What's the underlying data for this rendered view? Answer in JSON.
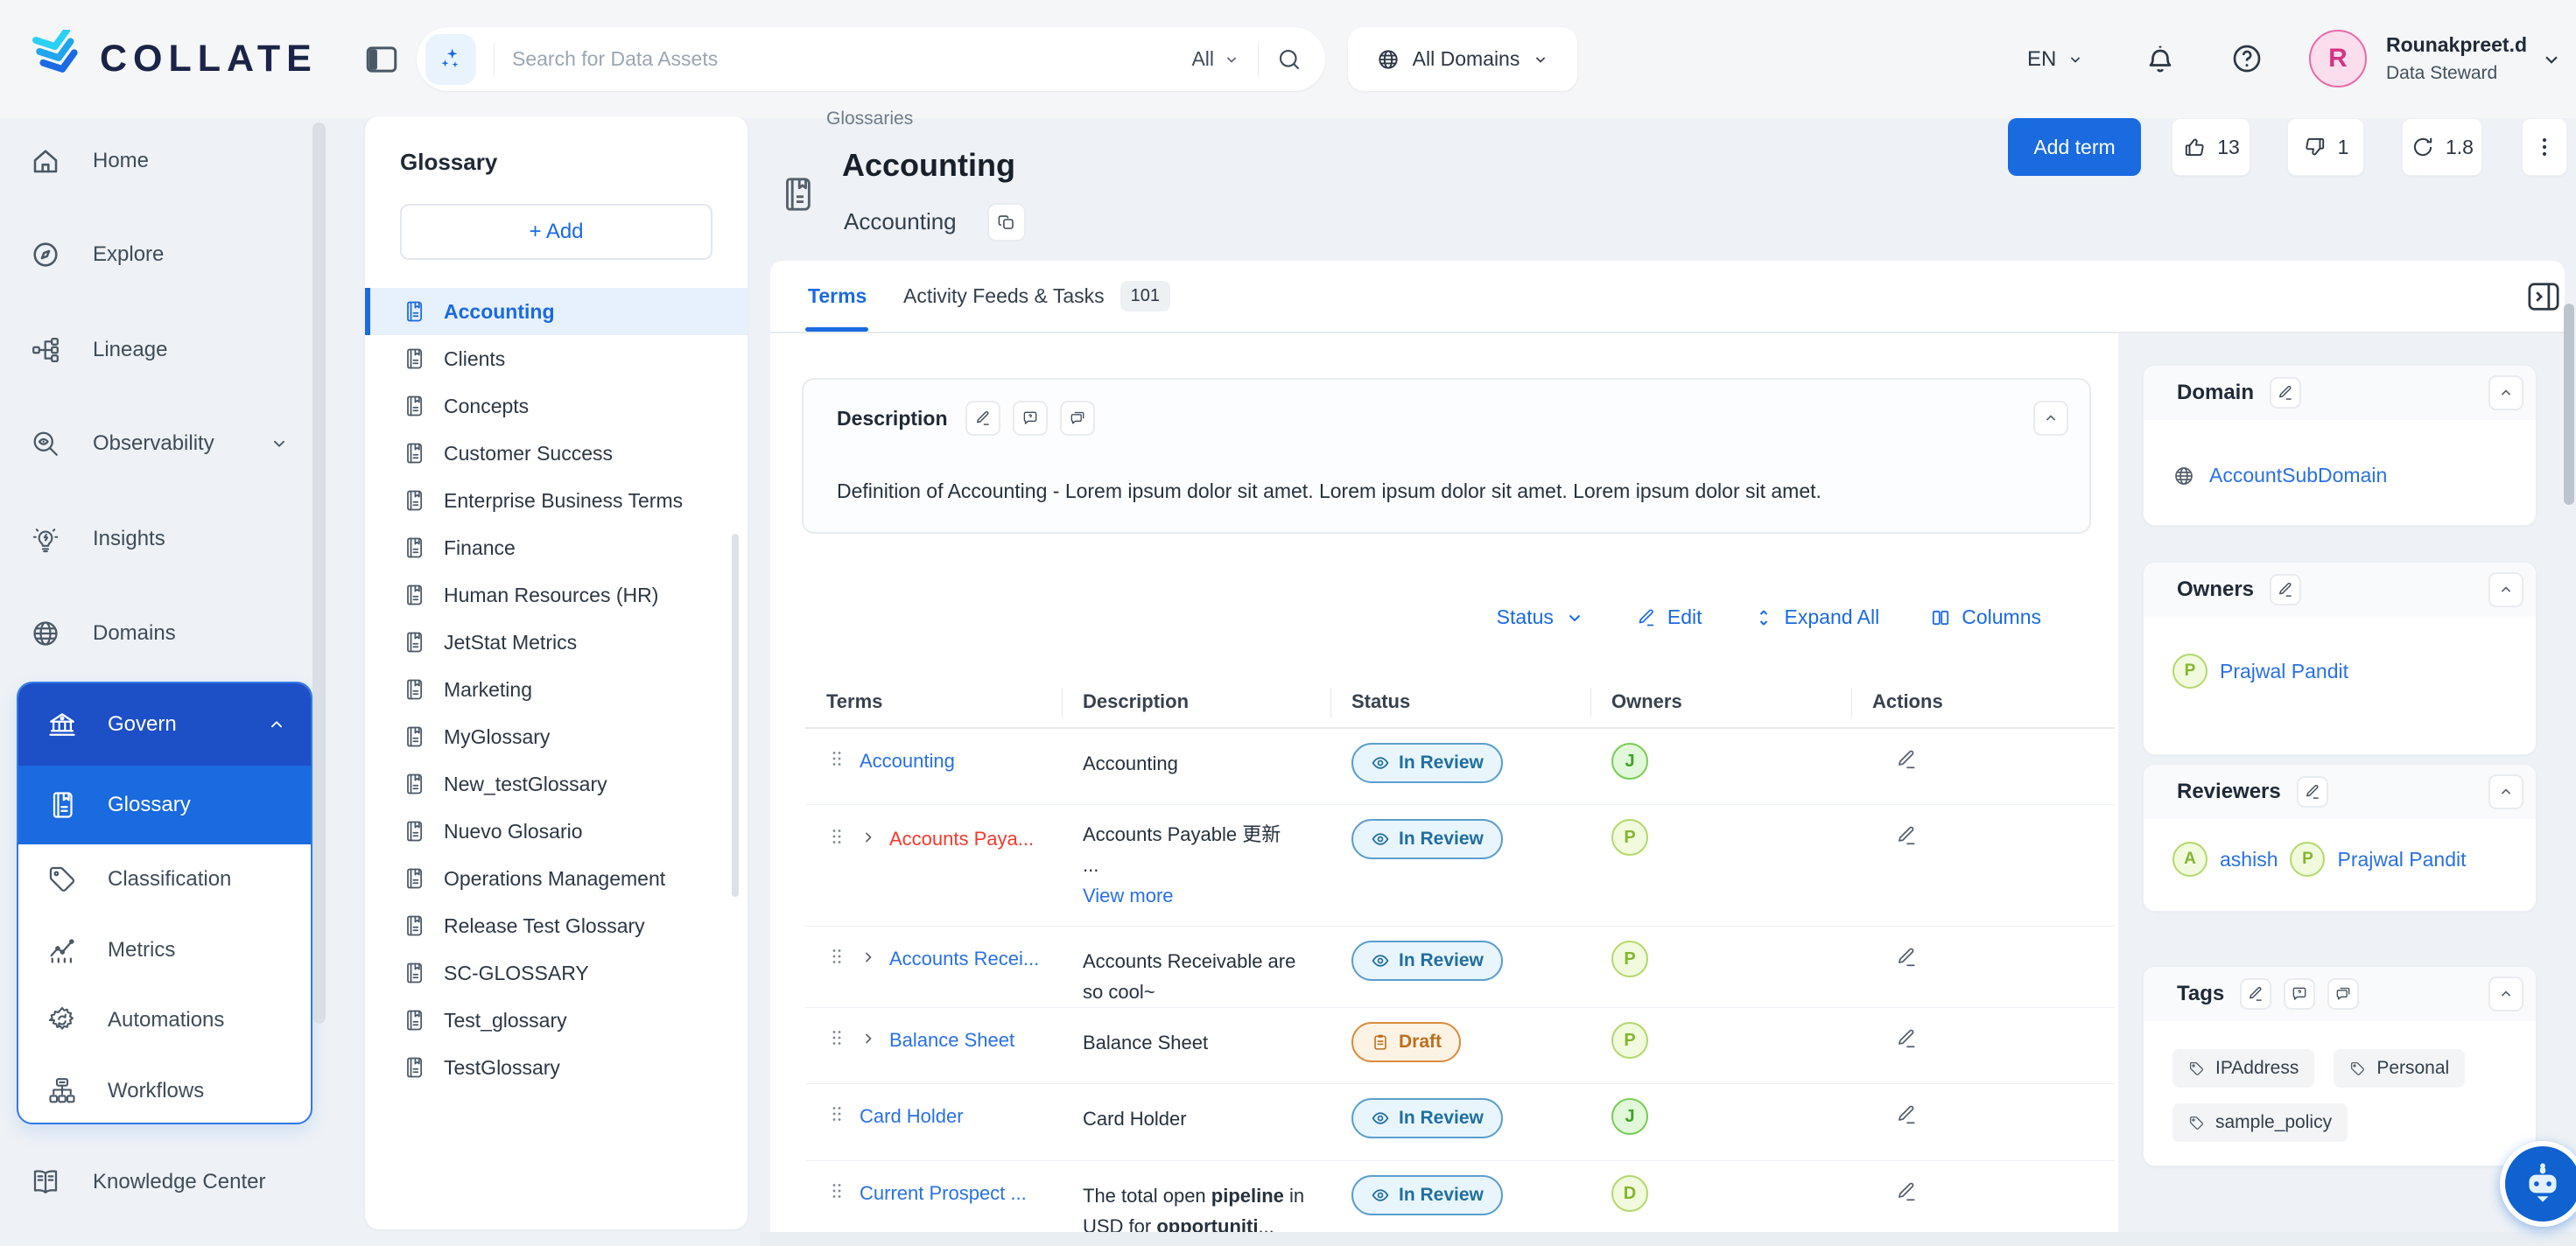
{
  "header": {
    "logo_text": "COLLATE",
    "search": {
      "placeholder": "Search for Data Assets",
      "scope": "All"
    },
    "domains_button": "All Domains",
    "language": "EN",
    "user": {
      "initial": "R",
      "name": "Rounakpreet.d",
      "role": "Data Steward"
    }
  },
  "sidebar": {
    "items": [
      {
        "label": "Home",
        "icon": "home"
      },
      {
        "label": "Explore",
        "icon": "explore"
      },
      {
        "label": "Lineage",
        "icon": "lineage"
      },
      {
        "label": "Observability",
        "icon": "observability",
        "chevron": true
      },
      {
        "label": "Insights",
        "icon": "insights"
      },
      {
        "label": "Domains",
        "icon": "globe"
      }
    ],
    "govern": {
      "label": "Govern",
      "children": [
        {
          "label": "Glossary",
          "icon": "book",
          "active": true
        },
        {
          "label": "Classification",
          "icon": "tag"
        },
        {
          "label": "Metrics",
          "icon": "metrics"
        },
        {
          "label": "Automations",
          "icon": "automations"
        },
        {
          "label": "Workflows",
          "icon": "workflows"
        }
      ]
    },
    "footer_item": {
      "label": "Knowledge Center",
      "icon": "knowledge"
    }
  },
  "glossary_panel": {
    "title": "Glossary",
    "add_label": "+  Add",
    "selected": "Accounting",
    "items": [
      "Accounting",
      "Clients",
      "Concepts",
      "Customer Success",
      "Enterprise Business Terms",
      "Finance",
      "Human Resources (HR)",
      "JetStat Metrics",
      "Marketing",
      "MyGlossary",
      "New_testGlossary",
      "Nuevo Glosario",
      "Operations Management",
      "Release Test Glossary",
      "SC-GLOSSARY",
      "Test_glossary",
      "TestGlossary"
    ]
  },
  "main": {
    "breadcrumb": "Glossaries",
    "title": "Accounting",
    "subtitle": "Accounting",
    "actions": {
      "add_term": "Add term",
      "upvotes": "13",
      "downvotes": "1",
      "version": "1.8"
    },
    "tabs": [
      {
        "label": "Terms",
        "active": true
      },
      {
        "label": "Activity Feeds & Tasks",
        "badge": "101"
      }
    ],
    "description": {
      "label": "Description",
      "text": "Definition of Accounting - Lorem ipsum dolor sit amet. Lorem ipsum dolor sit amet. Lorem ipsum dolor sit amet."
    },
    "toolbar": {
      "status": "Status",
      "edit": "Edit",
      "expand_all": "Expand All",
      "columns": "Columns"
    },
    "table": {
      "headers": [
        "Terms",
        "Description",
        "Status",
        "Owners",
        "Actions"
      ],
      "rows": [
        {
          "term": "Accounting",
          "term_color": "blue",
          "expandable": false,
          "desc": [
            [
              "Accounting",
              false
            ]
          ],
          "status": "In Review",
          "owner": "J",
          "owner_tone": "green"
        },
        {
          "term": "Accounts Paya...",
          "term_color": "red",
          "expandable": true,
          "desc": [
            [
              "Accounts Payable 更新",
              false
            ]
          ],
          "desc_more": "...",
          "view_more": "View more",
          "status": "In Review",
          "owner": "P",
          "owner_tone": "lime"
        },
        {
          "term": "Accounts Recei...",
          "term_color": "blue",
          "expandable": true,
          "desc": [
            [
              "Accounts Receivable are so cool~",
              false
            ]
          ],
          "status": "In Review",
          "owner": "P",
          "owner_tone": "lime"
        },
        {
          "term": "Balance Sheet",
          "term_color": "blue",
          "expandable": true,
          "desc": [
            [
              "Balance Sheet",
              false
            ]
          ],
          "status": "Draft",
          "owner": "P",
          "owner_tone": "lime"
        },
        {
          "term": "Card Holder",
          "term_color": "blue",
          "expandable": false,
          "desc": [
            [
              "Card Holder",
              false
            ]
          ],
          "status": "In Review",
          "owner": "J",
          "owner_tone": "green"
        },
        {
          "term": "Current Prospect ...",
          "term_color": "blue",
          "expandable": false,
          "desc": [
            [
              "The total open ",
              false
            ],
            [
              "pipeline",
              true
            ],
            [
              " in USD for ",
              false
            ],
            [
              "opportuniti",
              true
            ],
            [
              "...",
              false
            ]
          ],
          "status": "In Review",
          "owner": "D",
          "owner_tone": "lime"
        }
      ]
    }
  },
  "right_panel": {
    "domain": {
      "title": "Domain",
      "value": "AccountSubDomain"
    },
    "owners": {
      "title": "Owners",
      "people": [
        {
          "initial": "P",
          "name": "Prajwal Pandit",
          "tone": "lime"
        }
      ]
    },
    "reviewers": {
      "title": "Reviewers",
      "people": [
        {
          "initial": "A",
          "name": "ashish",
          "tone": "lime"
        },
        {
          "initial": "P",
          "name": "Prajwal Pandit",
          "tone": "lime"
        }
      ]
    },
    "tags": {
      "title": "Tags",
      "items": [
        "IPAddress",
        "Personal",
        "sample_policy"
      ]
    }
  },
  "colors": {
    "accent": "#1a6ae0",
    "govern_header": "#1d4fc6",
    "link": "#2970e6",
    "deprecated_term": "#f5392b",
    "in_review_border": "#5a9fce",
    "draft_border": "#da8c3c"
  }
}
